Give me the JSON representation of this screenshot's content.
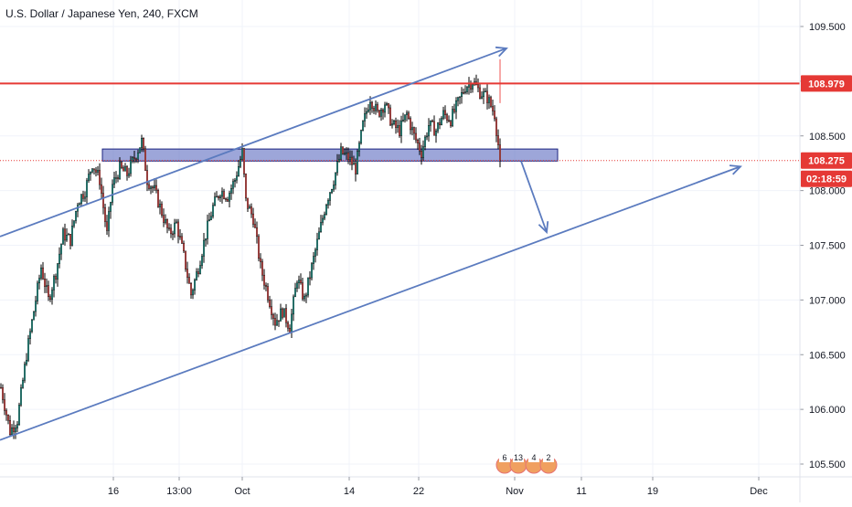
{
  "chart_title": "U.S. Dollar / Japanese Yen, 240, FXCM",
  "colors": {
    "up": "#26a69a",
    "down": "#ef5350",
    "wick": "#000000",
    "resistance": "#e53935",
    "drawing": "#5b7bbf",
    "zone_fill": "#5c6bc0",
    "price_tag_bg": "#e53935",
    "axis_text": "#131722",
    "grid": "#f0f3fa"
  },
  "chart_data": {
    "type": "candlestick",
    "title": "U.S. Dollar / Japanese Yen, 240, FXCM",
    "price_scale": {
      "ylim": [
        105.42,
        109.62
      ],
      "ticks": [
        "109.500",
        "109.000",
        "108.500",
        "108.000",
        "107.500",
        "107.000",
        "106.500",
        "106.000",
        "105.500"
      ]
    },
    "time_axis": {
      "labels": [
        "16",
        "13:00",
        "Oct",
        "14",
        "22",
        "Nov",
        "11",
        "19",
        "Dec"
      ]
    },
    "price_tags": {
      "resistance": "108.979",
      "last_price": "108.275",
      "countdown": "02:18:59"
    },
    "resistance_level": 108.979,
    "last_price": 108.275,
    "support_zone": [
      108.27,
      108.38
    ],
    "channel": {
      "upper": {
        "from": {
          "bar": 0,
          "price": 107.58
        },
        "to": {
          "bar": 277,
          "price": 109.3
        }
      },
      "lower": {
        "from": {
          "bar": 0,
          "price": 105.72
        },
        "to": {
          "bar": 405,
          "price": 108.22
        }
      }
    },
    "projection_arrow": {
      "from": {
        "bar": 285,
        "price": 108.27
      },
      "to": {
        "bar": 299,
        "price": 107.62
      }
    },
    "event_markers": [
      "6",
      "13",
      "4",
      "2"
    ],
    "path_points": [
      [
        0,
        106.2
      ],
      [
        5,
        105.8
      ],
      [
        9,
        105.9
      ],
      [
        14,
        106.5
      ],
      [
        18,
        106.9
      ],
      [
        22,
        107.3
      ],
      [
        26,
        107.0
      ],
      [
        30,
        107.25
      ],
      [
        34,
        107.6
      ],
      [
        38,
        107.55
      ],
      [
        42,
        107.9
      ],
      [
        46,
        108.0
      ],
      [
        50,
        108.25
      ],
      [
        54,
        108.1
      ],
      [
        58,
        107.6
      ],
      [
        61,
        108.05
      ],
      [
        65,
        108.2
      ],
      [
        69,
        108.15
      ],
      [
        73,
        108.3
      ],
      [
        77,
        108.45
      ],
      [
        80,
        108.1
      ],
      [
        84,
        108.0
      ],
      [
        88,
        107.8
      ],
      [
        92,
        107.6
      ],
      [
        96,
        107.7
      ],
      [
        100,
        107.4
      ],
      [
        104,
        107.05
      ],
      [
        108,
        107.3
      ],
      [
        112,
        107.6
      ],
      [
        116,
        107.85
      ],
      [
        120,
        108.0
      ],
      [
        124,
        107.95
      ],
      [
        128,
        108.1
      ],
      [
        132,
        108.35
      ],
      [
        134,
        107.9
      ],
      [
        138,
        107.75
      ],
      [
        142,
        107.3
      ],
      [
        146,
        107.05
      ],
      [
        150,
        106.8
      ],
      [
        154,
        106.9
      ],
      [
        158,
        106.75
      ],
      [
        162,
        107.2
      ],
      [
        166,
        107.0
      ],
      [
        170,
        107.3
      ],
      [
        174,
        107.6
      ],
      [
        178,
        107.9
      ],
      [
        182,
        108.1
      ],
      [
        186,
        108.35
      ],
      [
        190,
        108.3
      ],
      [
        194,
        108.2
      ],
      [
        198,
        108.6
      ],
      [
        202,
        108.85
      ],
      [
        206,
        108.7
      ],
      [
        210,
        108.8
      ],
      [
        214,
        108.6
      ],
      [
        218,
        108.55
      ],
      [
        222,
        108.7
      ],
      [
        226,
        108.5
      ],
      [
        230,
        108.35
      ],
      [
        234,
        108.6
      ],
      [
        238,
        108.55
      ],
      [
        242,
        108.7
      ],
      [
        246,
        108.65
      ],
      [
        250,
        108.8
      ],
      [
        254,
        108.95
      ],
      [
        258,
        109.0
      ],
      [
        262,
        108.9
      ],
      [
        266,
        108.85
      ],
      [
        270,
        108.7
      ],
      [
        273,
        108.28
      ]
    ]
  }
}
